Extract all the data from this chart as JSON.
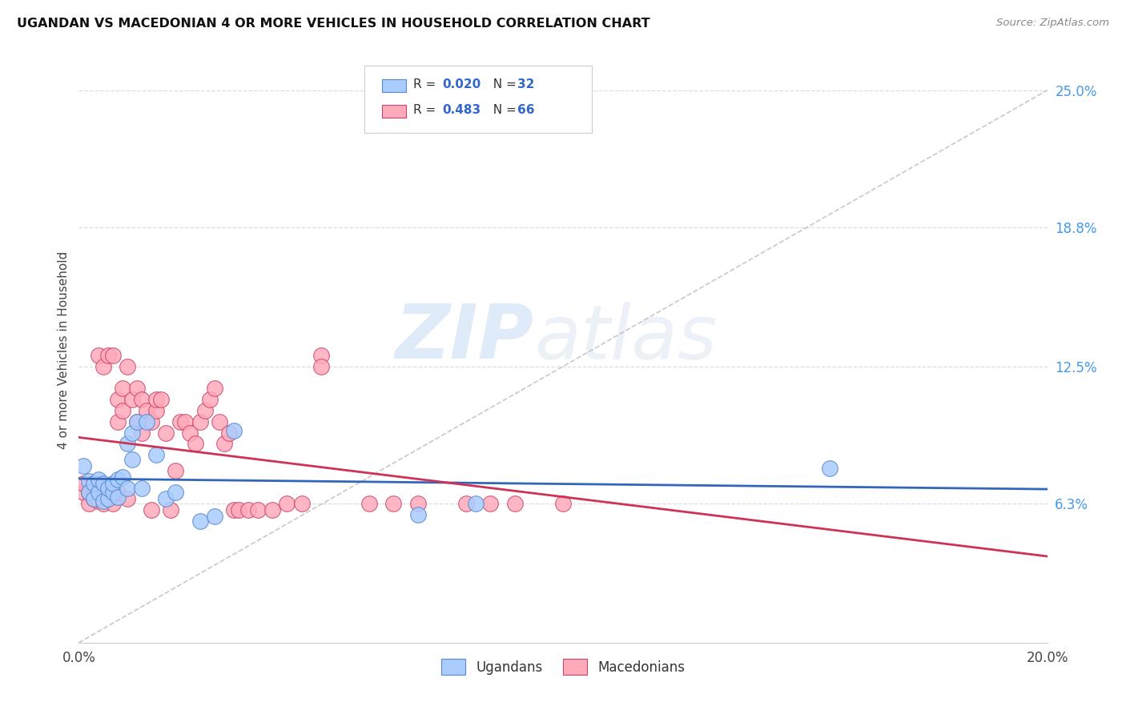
{
  "title": "UGANDAN VS MACEDONIAN 4 OR MORE VEHICLES IN HOUSEHOLD CORRELATION CHART",
  "source": "Source: ZipAtlas.com",
  "ylabel": "4 or more Vehicles in Household",
  "xlim": [
    0.0,
    0.2
  ],
  "ylim": [
    0.0,
    0.265
  ],
  "xticks": [
    0.0,
    0.05,
    0.1,
    0.15,
    0.2
  ],
  "xtick_labels": [
    "0.0%",
    "",
    "",
    "",
    "20.0%"
  ],
  "ytick_labels_right": [
    "25.0%",
    "18.8%",
    "12.5%",
    "6.3%"
  ],
  "ytick_positions_right": [
    0.25,
    0.188,
    0.125,
    0.063
  ],
  "watermark_zip": "ZIP",
  "watermark_atlas": "atlas",
  "ugandan_color": "#aaccff",
  "macedonian_color": "#ffaabb",
  "ugandan_edge": "#5588cc",
  "macedonian_edge": "#cc4466",
  "trend_ugandan": "#3366bb",
  "trend_macedonian": "#cc3355",
  "trend_dashed_color": "#bbbbbb",
  "background_color": "#ffffff",
  "grid_color": "#dddddd",
  "legend_text_color": "#3366cc",
  "legend_label_color": "#333333",
  "right_axis_color": "#4499ee",
  "ugandan_x": [
    0.001,
    0.002,
    0.002,
    0.003,
    0.003,
    0.004,
    0.004,
    0.005,
    0.005,
    0.006,
    0.006,
    0.007,
    0.007,
    0.008,
    0.008,
    0.009,
    0.01,
    0.01,
    0.011,
    0.011,
    0.012,
    0.013,
    0.014,
    0.016,
    0.018,
    0.02,
    0.025,
    0.028,
    0.032,
    0.07,
    0.082,
    0.155
  ],
  "ugandan_y": [
    0.08,
    0.073,
    0.068,
    0.072,
    0.065,
    0.068,
    0.074,
    0.064,
    0.072,
    0.065,
    0.07,
    0.068,
    0.072,
    0.074,
    0.066,
    0.075,
    0.07,
    0.09,
    0.095,
    0.083,
    0.1,
    0.07,
    0.1,
    0.085,
    0.065,
    0.068,
    0.055,
    0.057,
    0.096,
    0.058,
    0.063,
    0.079
  ],
  "macedonian_x": [
    0.001,
    0.001,
    0.002,
    0.002,
    0.003,
    0.003,
    0.003,
    0.004,
    0.004,
    0.004,
    0.005,
    0.005,
    0.005,
    0.006,
    0.006,
    0.007,
    0.007,
    0.007,
    0.008,
    0.008,
    0.008,
    0.009,
    0.009,
    0.01,
    0.01,
    0.011,
    0.012,
    0.012,
    0.013,
    0.013,
    0.014,
    0.015,
    0.015,
    0.016,
    0.016,
    0.017,
    0.018,
    0.019,
    0.02,
    0.021,
    0.022,
    0.023,
    0.024,
    0.025,
    0.026,
    0.027,
    0.028,
    0.029,
    0.03,
    0.031,
    0.032,
    0.033,
    0.035,
    0.037,
    0.04,
    0.043,
    0.046,
    0.05,
    0.06,
    0.065,
    0.07,
    0.08,
    0.085,
    0.09,
    0.1,
    0.05
  ],
  "macedonian_y": [
    0.068,
    0.072,
    0.063,
    0.068,
    0.065,
    0.072,
    0.068,
    0.064,
    0.13,
    0.068,
    0.063,
    0.068,
    0.125,
    0.065,
    0.13,
    0.063,
    0.068,
    0.13,
    0.068,
    0.11,
    0.1,
    0.115,
    0.105,
    0.065,
    0.125,
    0.11,
    0.115,
    0.1,
    0.11,
    0.095,
    0.105,
    0.1,
    0.06,
    0.105,
    0.11,
    0.11,
    0.095,
    0.06,
    0.078,
    0.1,
    0.1,
    0.095,
    0.09,
    0.1,
    0.105,
    0.11,
    0.115,
    0.1,
    0.09,
    0.095,
    0.06,
    0.06,
    0.06,
    0.06,
    0.06,
    0.063,
    0.063,
    0.13,
    0.063,
    0.063,
    0.063,
    0.063,
    0.063,
    0.063,
    0.063,
    0.125
  ]
}
